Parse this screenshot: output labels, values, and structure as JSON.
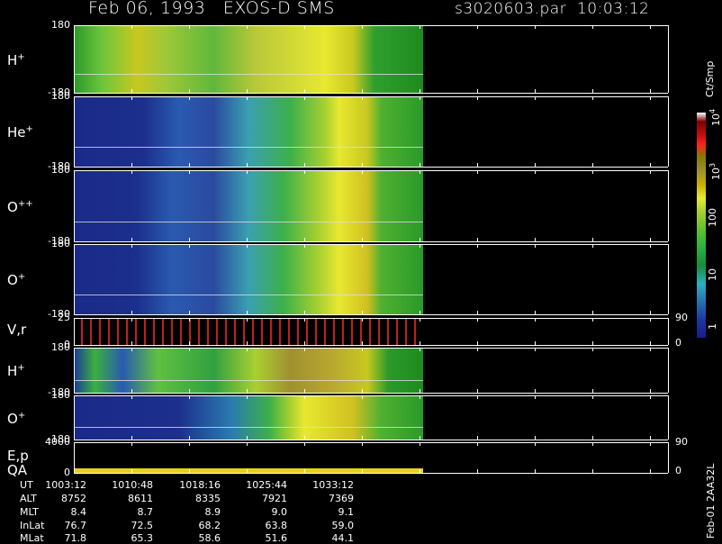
{
  "header": {
    "title": "Feb 06, 1993   EXOS-D SMS",
    "file": "s3020603.par  10:03:12"
  },
  "panels": [
    {
      "label": "H",
      "sup": "+",
      "ticks": [
        "180",
        "-180"
      ]
    },
    {
      "label": "He",
      "sup": "+",
      "ticks": [
        "180",
        "-180"
      ]
    },
    {
      "label": "O",
      "sup": "++",
      "ticks": [
        "180",
        "-180"
      ]
    },
    {
      "label": "O",
      "sup": "+",
      "ticks": [
        "180",
        "-180"
      ]
    },
    {
      "label": "V,r",
      "ticks": [
        "25",
        "0"
      ],
      "right_ticks": [
        "90",
        "0"
      ]
    },
    {
      "label": "H",
      "sup": "+",
      "ticks": [
        "180",
        "-180"
      ]
    },
    {
      "label": "O",
      "sup": "+",
      "ticks": [
        "180",
        "-180"
      ]
    },
    {
      "label": "E,p",
      "label2": "QA",
      "ticks": [
        "4000",
        "0"
      ],
      "right_ticks": [
        "90",
        "0"
      ]
    }
  ],
  "colorbar": {
    "unit": "Ct/Smp",
    "labels": [
      {
        "base": "10",
        "exp": "4"
      },
      {
        "base": "10",
        "exp": "3"
      },
      {
        "base": "100"
      },
      {
        "base": "10"
      },
      {
        "base": "1"
      }
    ]
  },
  "footer": {
    "rows": [
      {
        "label": "UT",
        "values": [
          "1003:12",
          "1010:48",
          "1018:16",
          "1025:44",
          "1033:12"
        ]
      },
      {
        "label": "ALT",
        "values": [
          "8752",
          "8611",
          "8335",
          "7921",
          "7369"
        ]
      },
      {
        "label": "MLT",
        "values": [
          "8.4",
          "8.7",
          "8.9",
          "9.0",
          "9.1"
        ]
      },
      {
        "label": "InLat",
        "values": [
          "76.7",
          "72.5",
          "68.2",
          "63.8",
          "59.0"
        ]
      },
      {
        "label": "MLat",
        "values": [
          "71.8",
          "65.3",
          "58.6",
          "51.6",
          "44.1"
        ]
      }
    ]
  },
  "side_note": "Feb-01 2AA32L"
}
